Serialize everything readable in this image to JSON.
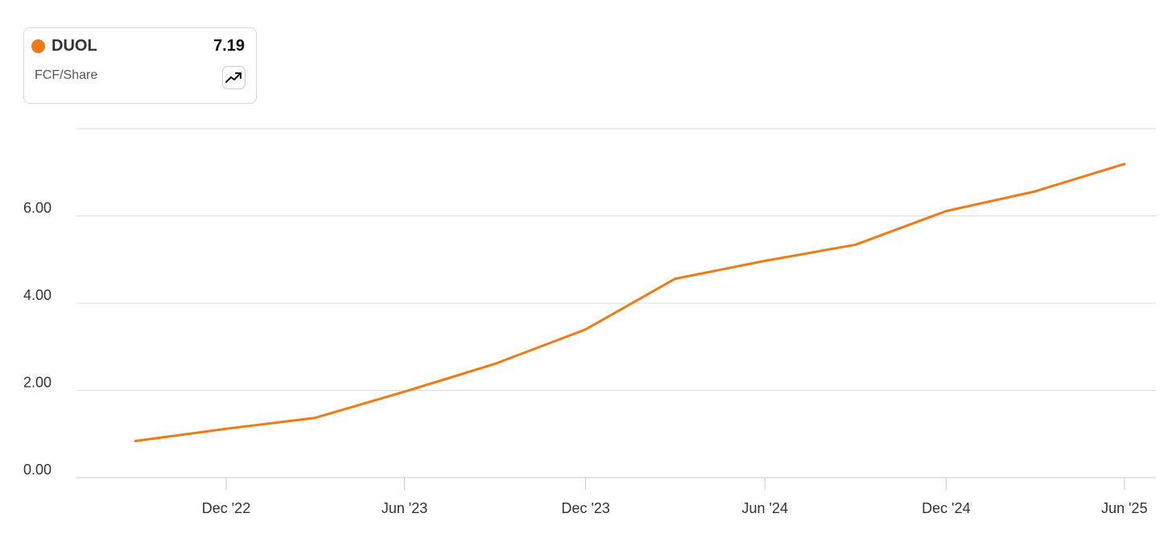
{
  "legend": {
    "ticker": "DUOL",
    "value": "7.19",
    "metric": "FCF/Share",
    "dot_color": "#f27a12",
    "toggle_icon": "trending-up-icon"
  },
  "chart_data": {
    "type": "line",
    "title": "",
    "xlabel": "",
    "ylabel": "",
    "series": [
      {
        "name": "DUOL",
        "color": "#f27a12",
        "x": [
          "2022-09-30",
          "2022-12-31",
          "2023-03-31",
          "2023-06-30",
          "2023-09-30",
          "2023-12-31",
          "2024-03-31",
          "2024-06-30",
          "2024-09-30",
          "2024-12-31",
          "2025-03-31",
          "2025-06-30"
        ],
        "values": [
          0.84,
          1.12,
          1.37,
          1.97,
          2.61,
          3.4,
          4.56,
          4.97,
          5.34,
          6.11,
          6.56,
          7.19
        ]
      }
    ],
    "x_ticks": [
      {
        "label": "Dec '22",
        "date": "2022-12-31"
      },
      {
        "label": "Jun '23",
        "date": "2023-06-30"
      },
      {
        "label": "Dec '23",
        "date": "2023-12-31"
      },
      {
        "label": "Jun '24",
        "date": "2024-06-30"
      },
      {
        "label": "Dec '24",
        "date": "2024-12-31"
      },
      {
        "label": "Jun '25",
        "date": "2025-06-30"
      }
    ],
    "y_ticks": [
      {
        "value": 0,
        "label": "0.00"
      },
      {
        "value": 2,
        "label": "2.00"
      },
      {
        "value": 4,
        "label": "4.00"
      },
      {
        "value": 6,
        "label": "6.00"
      },
      {
        "value": 8,
        "label": ""
      }
    ],
    "ylim": [
      0,
      8
    ],
    "xlim": [
      "2022-08-01",
      "2025-08-01"
    ],
    "grid": true,
    "legend_position": "top-left"
  }
}
